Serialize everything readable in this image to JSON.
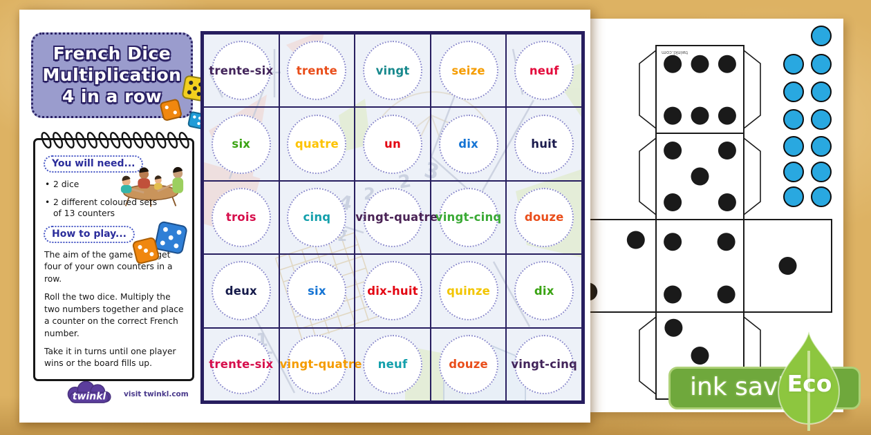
{
  "title_box": {
    "line1": "French Dice",
    "line2": "Multiplication",
    "line3": "4 in a row"
  },
  "notepad": {
    "need_header": "You will need...",
    "need_items": [
      "2 dice",
      "2 different coloured sets of 13 counters"
    ],
    "play_header": "How to play...",
    "paragraphs": [
      "The aim of the game is to get four of your own counters in a row.",
      "Roll the two dice. Multiply the two numbers together and place a counter on the correct French number.",
      "Take it in turns until one player wins or the board fills up."
    ]
  },
  "logo": {
    "brand": "twinkl",
    "tagline": "visit twinkl.com"
  },
  "board": {
    "rows": [
      [
        {
          "word": "trente-six",
          "color": "#42245a"
        },
        {
          "word": "trente",
          "color": "#e94e1b"
        },
        {
          "word": "vingt",
          "color": "#18898d"
        },
        {
          "word": "seize",
          "color": "#f59c00"
        },
        {
          "word": "neuf",
          "color": "#e30b3c"
        }
      ],
      [
        {
          "word": "six",
          "color": "#3aa313"
        },
        {
          "word": "quatre",
          "color": "#fdc300"
        },
        {
          "word": "un",
          "color": "#e30613"
        },
        {
          "word": "dix",
          "color": "#1574d4"
        },
        {
          "word": "huit",
          "color": "#1b1b4d"
        }
      ],
      [
        {
          "word": "trois",
          "color": "#d60f4c"
        },
        {
          "word": "cinq",
          "color": "#14a0ac"
        },
        {
          "word": "vingt-quatre",
          "color": "#4a2355"
        },
        {
          "word": "vingt-cinq",
          "color": "#3aaa35"
        },
        {
          "word": "douze",
          "color": "#e94e1b"
        }
      ],
      [
        {
          "word": "deux",
          "color": "#151a4a"
        },
        {
          "word": "six",
          "color": "#1574d4"
        },
        {
          "word": "dix-huit",
          "color": "#e30613"
        },
        {
          "word": "quinze",
          "color": "#f2c500"
        },
        {
          "word": "dix",
          "color": "#3aa313"
        }
      ],
      [
        {
          "word": "trente-six",
          "color": "#d60f4c"
        },
        {
          "word": "vingt-quatre",
          "color": "#f59c00"
        },
        {
          "word": "neuf",
          "color": "#14a0ac"
        },
        {
          "word": "douze",
          "color": "#e94e1b"
        },
        {
          "word": "vingt-cinq",
          "color": "#42245a"
        }
      ]
    ]
  },
  "dice_net": {
    "faces": [
      {
        "value": 6
      },
      {
        "value": 5
      },
      {
        "value": 4
      },
      {
        "value": 3
      },
      {
        "value": 1
      },
      {
        "value": 2
      }
    ],
    "label": "twinkl.com",
    "pip_color": "#1a1a1a"
  },
  "counters": {
    "count": 13,
    "color": "#29a8e0"
  },
  "eco_badge": {
    "band_label": "ink saving",
    "leaf_label": "Eco",
    "band_color": "#6fa83c",
    "leaf_color": "#8dc63f"
  }
}
